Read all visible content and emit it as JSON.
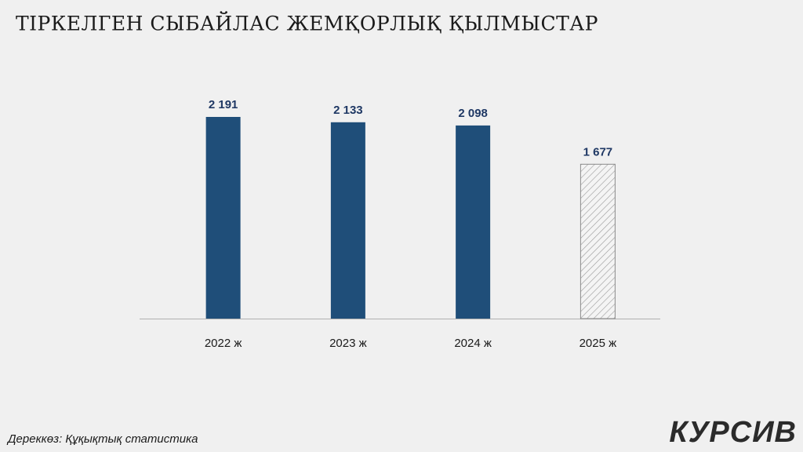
{
  "chart_data": {
    "type": "bar",
    "title": "ТІРКЕЛГЕН СЫБАЙЛАС ЖЕМҚОРЛЫҚ ҚЫЛМЫСТАР",
    "categories": [
      "2022 ж",
      "2023 ж",
      "2024 ж",
      "2025 ж"
    ],
    "values": [
      2191,
      2133,
      2098,
      1677
    ],
    "value_labels": [
      "2 191",
      "2 133",
      "2 098",
      "1 677"
    ],
    "styles": [
      "solid",
      "solid",
      "solid",
      "hatched"
    ],
    "color": "#1f4e79"
  },
  "source": "Дереккөз: Құқықтық статистика",
  "logo": "КУРСИВ"
}
